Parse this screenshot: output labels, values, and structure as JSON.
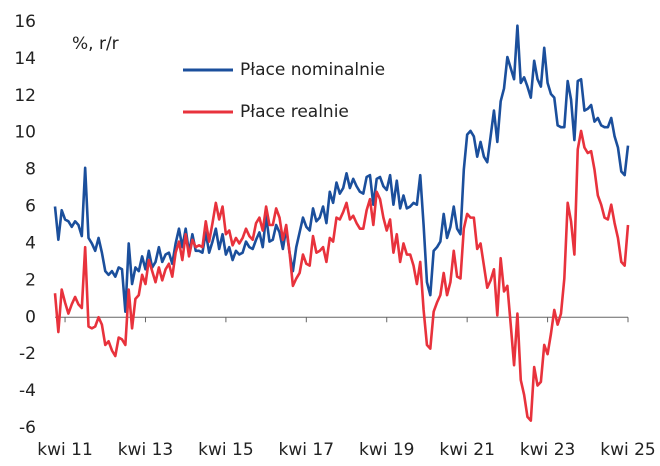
{
  "chart_data": {
    "type": "line",
    "annotation": "%, r/r",
    "categories": [
      null,
      null,
      null,
      "kwi 11",
      null,
      null,
      null,
      null,
      null,
      null,
      null,
      null,
      null,
      null,
      null,
      null,
      null,
      null,
      null,
      null,
      null,
      null,
      null,
      null,
      null,
      null,
      null,
      "kwi 13",
      null,
      null,
      null,
      null,
      null,
      null,
      null,
      null,
      null,
      null,
      null,
      null,
      null,
      null,
      null,
      null,
      null,
      null,
      null,
      null,
      null,
      null,
      null,
      "kwi 15",
      null,
      null,
      null,
      null,
      null,
      null,
      null,
      null,
      null,
      null,
      null,
      null,
      null,
      null,
      null,
      null,
      null,
      null,
      null,
      null,
      null,
      null,
      null,
      "kwi 17",
      null,
      null,
      null,
      null,
      null,
      null,
      null,
      null,
      null,
      null,
      null,
      null,
      null,
      null,
      null,
      null,
      null,
      null,
      null,
      null,
      null,
      null,
      null,
      "kwi 19",
      null,
      null,
      null,
      null,
      null,
      null,
      null,
      null,
      null,
      null,
      null,
      null,
      null,
      null,
      null,
      null,
      null,
      null,
      null,
      null,
      null,
      null,
      null,
      "kwi 21",
      null,
      null,
      null,
      null,
      null,
      null,
      null,
      null,
      null,
      null,
      null,
      null,
      null,
      null,
      null,
      null,
      null,
      null,
      null,
      null,
      null,
      null,
      null,
      "kwi 23",
      null,
      null,
      null,
      null,
      null,
      null,
      null,
      null,
      null,
      null,
      null,
      null,
      null,
      null,
      null,
      null,
      null,
      null,
      null,
      null,
      null,
      null,
      null,
      "kwi 25"
    ],
    "series": [
      {
        "name": "Płace nominalnie",
        "color": "#1b4f9c",
        "values": [
          6.0,
          4.2,
          5.8,
          5.3,
          5.2,
          4.9,
          5.2,
          5.0,
          4.4,
          8.1,
          4.3,
          4.0,
          3.6,
          4.3,
          3.5,
          2.5,
          2.3,
          2.5,
          2.2,
          2.7,
          2.6,
          0.3,
          4.0,
          1.8,
          2.7,
          2.5,
          3.3,
          2.6,
          3.6,
          2.7,
          3.0,
          3.8,
          3.0,
          3.4,
          3.5,
          2.9,
          4.0,
          4.8,
          3.8,
          4.8,
          3.5,
          4.5,
          3.6,
          3.6,
          3.5,
          4.6,
          3.5,
          4.1,
          4.8,
          3.7,
          4.5,
          3.4,
          3.8,
          3.1,
          3.6,
          3.4,
          3.5,
          4.1,
          3.8,
          3.7,
          4.2,
          4.6,
          3.8,
          5.5,
          4.1,
          4.2,
          5.0,
          4.6,
          3.7,
          4.8,
          3.5,
          2.5,
          3.8,
          4.6,
          5.4,
          4.9,
          4.7,
          5.9,
          5.2,
          5.4,
          6.0,
          5.1,
          6.8,
          6.2,
          7.3,
          6.7,
          7.0,
          7.8,
          7.0,
          7.5,
          7.1,
          6.8,
          6.7,
          7.6,
          7.7,
          6.1,
          7.5,
          7.6,
          7.1,
          6.9,
          7.7,
          6.1,
          7.4,
          5.9,
          6.6,
          5.9,
          6.0,
          6.2,
          6.1,
          7.7,
          5.0,
          1.9,
          1.2,
          3.6,
          3.8,
          4.1,
          5.6,
          4.3,
          4.9,
          6.0,
          4.8,
          4.5,
          8.0,
          9.9,
          10.1,
          9.8,
          8.7,
          9.5,
          8.7,
          8.4,
          9.8,
          11.2,
          9.5,
          11.7,
          12.4,
          14.1,
          13.5,
          12.9,
          15.8,
          12.7,
          13.0,
          12.5,
          11.9,
          13.9,
          12.9,
          12.5,
          14.6,
          12.7,
          12.1,
          11.9,
          10.4,
          10.3,
          10.3,
          12.8,
          11.8,
          9.6,
          12.8,
          12.9,
          11.2,
          11.3,
          11.5,
          10.6,
          10.8,
          10.4,
          10.3,
          10.3,
          10.8,
          9.8,
          9.2,
          7.9,
          7.7,
          9.3
        ]
      },
      {
        "name": "Płace realnie",
        "color": "#e8323c",
        "values": [
          1.3,
          -0.8,
          1.5,
          0.8,
          0.2,
          0.7,
          1.1,
          0.7,
          0.5,
          3.8,
          -0.5,
          -0.6,
          -0.5,
          0.0,
          -0.4,
          -1.5,
          -1.3,
          -1.8,
          -2.1,
          -1.1,
          -1.2,
          -1.5,
          1.5,
          -0.6,
          1.0,
          1.2,
          2.3,
          1.8,
          3.1,
          2.5,
          1.9,
          2.7,
          2.0,
          2.6,
          2.9,
          2.2,
          3.5,
          4.1,
          3.1,
          4.5,
          3.3,
          4.2,
          3.8,
          3.9,
          3.8,
          5.2,
          4.1,
          5.1,
          6.2,
          5.3,
          6.0,
          4.5,
          4.7,
          3.9,
          4.3,
          4.0,
          4.3,
          4.8,
          4.4,
          4.2,
          5.1,
          5.4,
          4.7,
          6.0,
          5.0,
          5.0,
          5.9,
          5.4,
          4.2,
          5.0,
          3.5,
          1.7,
          2.1,
          2.4,
          3.4,
          2.9,
          2.8,
          4.4,
          3.5,
          3.6,
          3.8,
          3.0,
          4.3,
          4.1,
          5.4,
          5.3,
          5.7,
          6.2,
          5.3,
          5.5,
          5.1,
          4.8,
          4.8,
          5.8,
          6.4,
          5.0,
          6.8,
          6.4,
          5.4,
          4.7,
          5.3,
          3.5,
          4.5,
          3.0,
          4.0,
          3.4,
          3.4,
          2.8,
          1.8,
          3.0,
          0.4,
          -1.5,
          -1.7,
          0.3,
          0.8,
          1.2,
          2.4,
          1.2,
          1.9,
          3.6,
          2.2,
          2.1,
          4.8,
          5.6,
          5.4,
          5.4,
          3.7,
          4.0,
          2.8,
          1.6,
          2.0,
          2.6,
          0.1,
          3.2,
          1.4,
          1.7,
          -0.4,
          -2.6,
          0.2,
          -3.4,
          -4.2,
          -5.4,
          -5.6,
          -2.7,
          -3.7,
          -3.5,
          -1.5,
          -2.0,
          -0.9,
          0.4,
          -0.4,
          0.2,
          2.1,
          6.2,
          5.2,
          3.4,
          9.1,
          10.1,
          9.2,
          8.9,
          9.0,
          8.0,
          6.6,
          6.1,
          5.4,
          5.3,
          6.1,
          5.1,
          4.3,
          3.0,
          2.8,
          5.0
        ]
      }
    ],
    "ylim": [
      -6,
      16
    ],
    "yticks": [
      -6,
      -4,
      -2,
      0,
      2,
      4,
      6,
      8,
      10,
      12,
      14,
      16
    ],
    "grid": false
  }
}
